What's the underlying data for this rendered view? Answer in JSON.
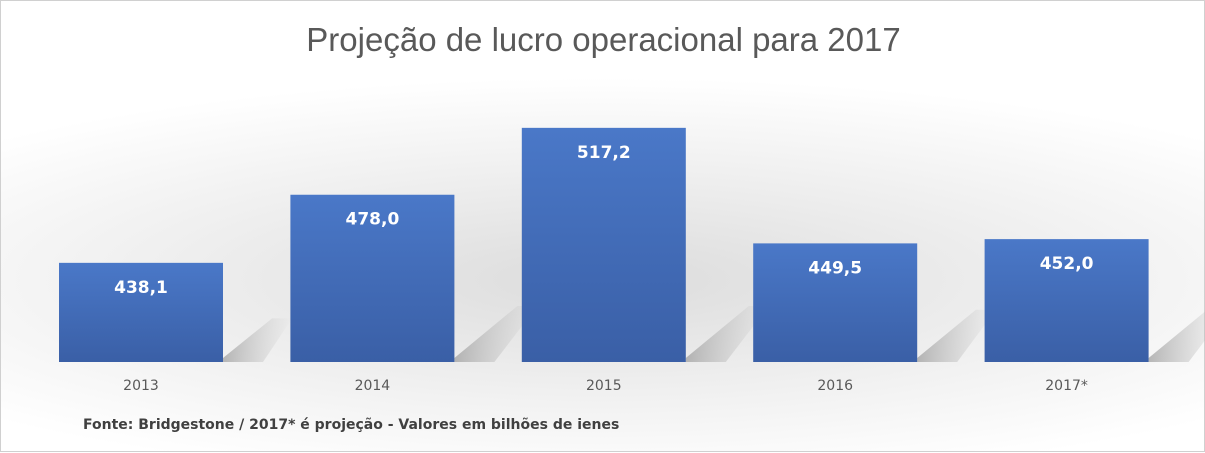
{
  "chart_data": {
    "type": "bar",
    "title": "Projeção de lucro operacional para 2017",
    "categories": [
      "2013",
      "2014",
      "2015",
      "2016",
      "2017*"
    ],
    "values": [
      438.1,
      478.0,
      517.2,
      449.5,
      452.0
    ],
    "data_labels": [
      "438,1",
      "478,0",
      "517,2",
      "449,5",
      "452,0"
    ],
    "xlabel": "",
    "ylabel": "",
    "ylim": [
      380,
      530
    ],
    "grid": false,
    "bar_color": "#4472c4",
    "footnote": "Fonte: Bridgestone /  2017* é projeção - Valores em bilhões de ienes"
  }
}
